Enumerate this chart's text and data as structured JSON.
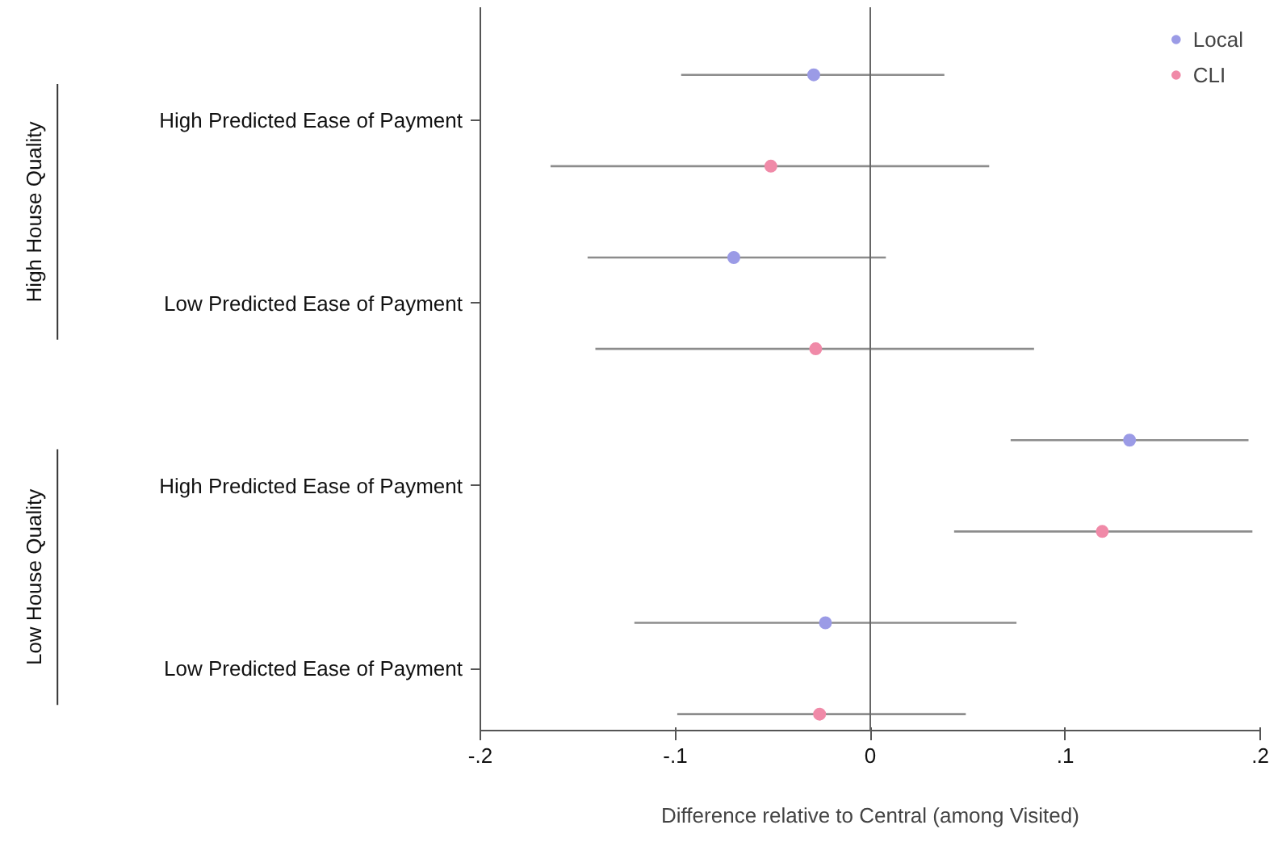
{
  "chart_data": {
    "type": "scatter",
    "orientation": "horizontal",
    "xlabel": "Difference relative to Central (among Visited)",
    "categories": [
      "High Predicted Ease of Payment",
      "Low Predicted Ease of Payment",
      "High Predicted Ease of Payment",
      "Low Predicted Ease of Payment"
    ],
    "series": [
      {
        "name": "Local",
        "color": "#9b9be6",
        "values": [
          -0.029,
          -0.07,
          0.133,
          -0.023
        ],
        "errors": [
          [
            -0.097,
            0.038
          ],
          [
            -0.145,
            0.008
          ],
          [
            0.072,
            0.194
          ],
          [
            -0.121,
            0.075
          ]
        ]
      },
      {
        "name": "CLI",
        "color": "#f08aa8",
        "values": [
          -0.051,
          -0.028,
          0.119,
          -0.026
        ],
        "errors": [
          [
            -0.164,
            0.061
          ],
          [
            -0.141,
            0.084
          ],
          [
            0.043,
            0.196
          ],
          [
            -0.099,
            0.049
          ]
        ]
      }
    ],
    "xlim": [
      -0.2,
      0.2
    ],
    "xticks": [
      {
        "value": -0.2,
        "label": "-.2"
      },
      {
        "value": -0.1,
        "label": "-.1"
      },
      0,
      {
        "value": 0.1,
        "label": ".1"
      },
      {
        "value": 0.2,
        "label": ".2"
      }
    ],
    "ref_lines": [
      {
        "axis": "x",
        "value": 0,
        "color": "#666666"
      }
    ],
    "annotations": [
      "High House Quality",
      "Low House Quality"
    ],
    "grid": false,
    "legend": "top right",
    "marker": "circle"
  }
}
